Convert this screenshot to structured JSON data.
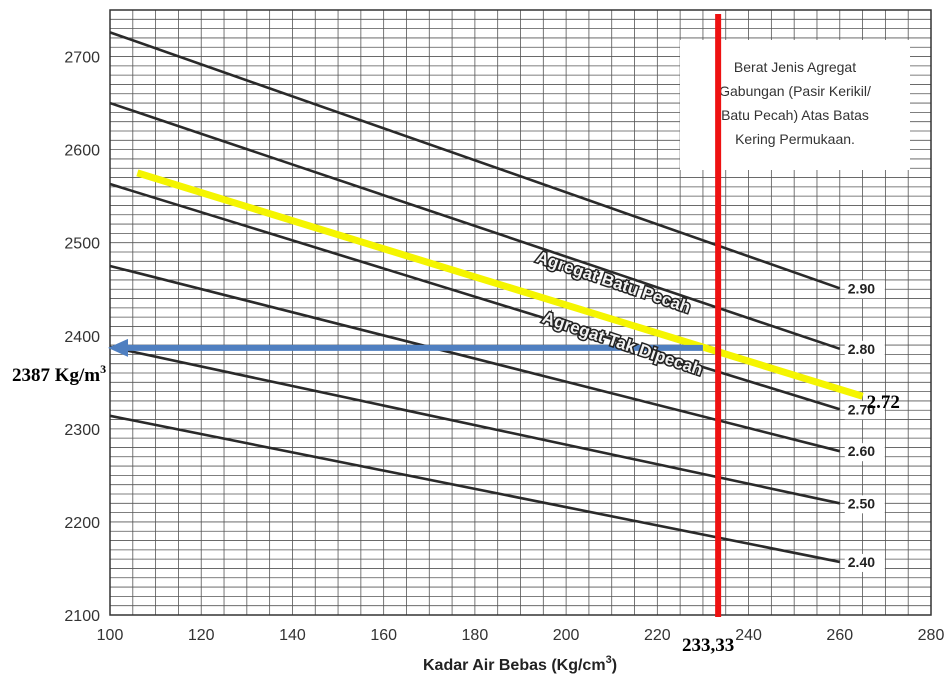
{
  "chart_data": {
    "type": "line",
    "xlabel": "Kadar Air Bebas (Kg/cm",
    "xlabel_sup": "3",
    "xlabel_end": ")",
    "xlim": [
      100,
      280
    ],
    "ylim": [
      2100,
      2750
    ],
    "x_ticks": [
      100,
      120,
      140,
      160,
      180,
      200,
      220,
      240,
      260,
      280
    ],
    "y_ticks": [
      2100,
      2200,
      2300,
      2400,
      2500,
      2600,
      2700
    ],
    "grid": true,
    "note_lines": [
      "Berat Jenis Agregat",
      "Gabungan (Pasir Kerikil/",
      "Batu Pecah) Atas Batas",
      "Kering Permukaan."
    ],
    "series": [
      {
        "name": "2.90",
        "x": [
          100,
          260
        ],
        "y": [
          2726,
          2451
        ]
      },
      {
        "name": "2.80",
        "x": [
          100,
          260
        ],
        "y": [
          2650,
          2386
        ]
      },
      {
        "name": "2.70",
        "x": [
          100,
          260
        ],
        "y": [
          2563,
          2321
        ]
      },
      {
        "name": "2.60",
        "x": [
          100,
          260
        ],
        "y": [
          2475,
          2276
        ]
      },
      {
        "name": "2.50",
        "x": [
          100,
          260
        ],
        "y": [
          2388,
          2220
        ]
      },
      {
        "name": "2.40",
        "x": [
          100,
          260
        ],
        "y": [
          2314,
          2157
        ]
      }
    ],
    "annotations": {
      "interpolated_line": {
        "label": "2.72",
        "x": [
          106,
          265
        ],
        "y": [
          2575,
          2335
        ],
        "color": "#f5f500"
      },
      "vertical_line": {
        "label": "233,33",
        "x": 233.33,
        "color": "#ee1111"
      },
      "result_arrow": {
        "label": "2387 Kg/m",
        "label_sup": "3",
        "x_from": 230,
        "x_to": 100,
        "y": 2387,
        "color": "#4f7fc0"
      },
      "aggregate_labels": [
        "Agregat Batu Pecah",
        "Agregat Tak Dipecah"
      ]
    }
  }
}
